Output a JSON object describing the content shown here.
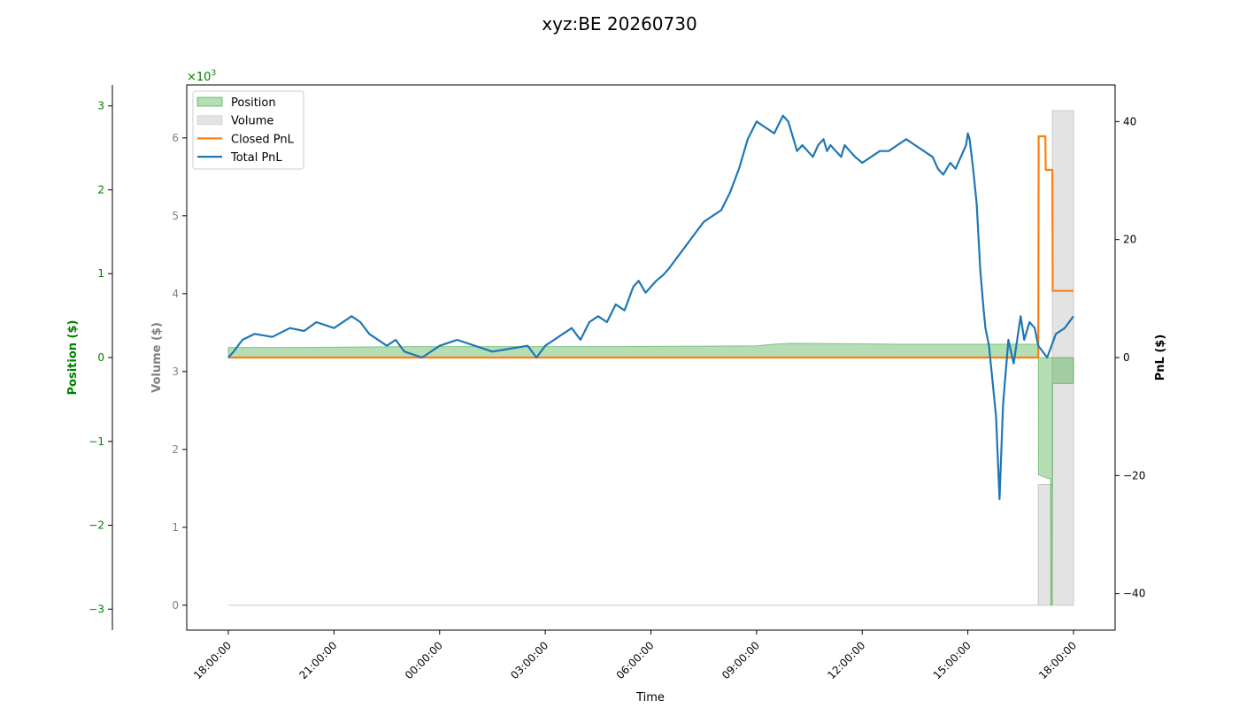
{
  "chart_data": {
    "type": "line",
    "title": "xyz:BE 20260730",
    "xlabel": "Time",
    "x_ticks": [
      "18:00:00",
      "21:00:00",
      "00:00:00",
      "03:00:00",
      "06:00:00",
      "09:00:00",
      "12:00:00",
      "15:00:00",
      "18:00:00"
    ],
    "axes": {
      "position": {
        "label": "Position ($)",
        "ticks": [
          -3,
          -2,
          -1,
          0,
          1,
          2,
          3
        ],
        "range": [
          -3.25,
          3.25
        ],
        "color": "#008000"
      },
      "volume": {
        "label": "Volume ($)",
        "ticks": [
          0,
          1,
          2,
          3,
          4,
          5,
          6
        ],
        "range": [
          -0.32,
          6.68
        ],
        "scale_label": "×10",
        "scale_exp": "3",
        "color": "#808080"
      },
      "pnl": {
        "label": "PnL ($)",
        "ticks": [
          -40,
          -20,
          0,
          20,
          40
        ],
        "range": [
          -46.2,
          46.2
        ],
        "color": "#000000"
      }
    },
    "legend": {
      "placement": "top-left",
      "items": [
        {
          "label": "Position",
          "kind": "patch",
          "color": "#2ca02c"
        },
        {
          "label": "Volume",
          "kind": "patch",
          "color": "#c8c8c8"
        },
        {
          "label": "Closed PnL",
          "kind": "line",
          "color": "#ff7f0e"
        },
        {
          "label": "Total PnL",
          "kind": "line",
          "color": "#1f77b4"
        }
      ]
    },
    "series": {
      "total_pnl": {
        "color": "#1f77b4",
        "x_hours": [
          0,
          0.3,
          0.8,
          1.5,
          2.5,
          3.5,
          4.3,
          5,
          6,
          7,
          7.5,
          8,
          9,
          9.5,
          10,
          11,
          12,
          13,
          14,
          15,
          16,
          17,
          17.5,
          18,
          18.5,
          19,
          19.5,
          20,
          20.5,
          21,
          21.5,
          22,
          22.5,
          23,
          23.3,
          23.7,
          24,
          24.3,
          24.7,
          25,
          25.5,
          26,
          26.5,
          27,
          27.5,
          28,
          28.5,
          29,
          29.5,
          30,
          30.5,
          31,
          31.5,
          31.8,
          32,
          32.3,
          32.6,
          32.9,
          33.2,
          33.5,
          33.8,
          34,
          34.2,
          34.5,
          34.8,
          35,
          35.3,
          35.6,
          36,
          36.5,
          37,
          37.5,
          38,
          38.5,
          39,
          39.5,
          40,
          40.3,
          40.6,
          41,
          41.3,
          41.6,
          41.9,
          42,
          42.1,
          42.3,
          42.5,
          42.7,
          42.9,
          43,
          43.2,
          43.4,
          43.6,
          43.8,
          44,
          44.3,
          44.6,
          44.9,
          45,
          45.2,
          45.5,
          45.8,
          46,
          46.5,
          47,
          47.5,
          48
        ],
        "y": [
          0,
          1,
          3,
          4,
          3.5,
          5,
          4.5,
          6,
          5,
          7,
          6,
          4,
          2,
          3,
          1,
          0,
          2,
          3,
          2,
          1,
          1.5,
          2,
          0,
          2,
          3,
          4,
          5,
          3,
          6,
          7,
          6,
          9,
          8,
          12,
          13,
          11,
          12,
          13,
          14,
          15,
          17,
          19,
          21,
          23,
          24,
          25,
          28,
          32,
          37,
          40,
          39,
          38,
          41,
          40,
          38,
          35,
          36,
          35,
          34,
          36,
          37,
          35,
          36,
          35,
          34,
          36,
          35,
          34,
          33,
          34,
          35,
          35,
          36,
          37,
          36,
          35,
          34,
          32,
          31,
          33,
          32,
          34,
          36,
          38,
          37,
          32,
          26,
          15,
          8,
          5,
          2,
          -4,
          -10,
          -24,
          -8,
          3,
          -1,
          5,
          7,
          3,
          6,
          5,
          2,
          0,
          4,
          5,
          7
        ]
      },
      "closed_pnl": {
        "color": "#ff7f0e",
        "x_hours": [
          0,
          46,
          46.02,
          46.4,
          46.42,
          46.8,
          46.82,
          48
        ],
        "y": [
          0,
          0,
          37.5,
          37.5,
          31.8,
          31.8,
          11.3,
          11.3
        ]
      },
      "position": {
        "color": "#2ca02c",
        "x_hours": [
          0,
          2,
          4,
          10,
          16,
          22,
          30,
          31,
          32,
          38,
          46,
          46.01,
          46.7,
          46.71,
          46.8,
          46.81,
          48
        ],
        "y": [
          0.12,
          0.12,
          0.12,
          0.13,
          0.13,
          0.13,
          0.14,
          0.16,
          0.17,
          0.16,
          0.16,
          -1.4,
          -1.45,
          -2.95,
          -2.95,
          -0.31,
          -0.31
        ]
      },
      "volume": {
        "color": "#c8c8c8",
        "x_hours": [
          0,
          46,
          46,
          46.8,
          46.8,
          48,
          48
        ],
        "y": [
          0,
          0,
          1.55,
          1.55,
          6.35,
          6.35,
          0
        ]
      }
    }
  }
}
